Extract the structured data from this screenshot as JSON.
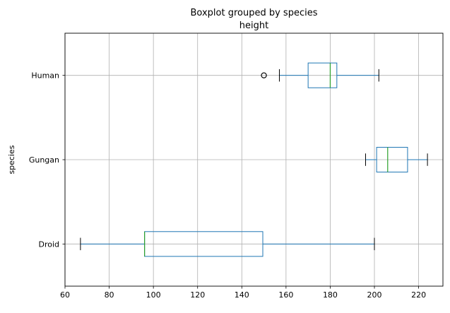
{
  "chart_data": {
    "type": "boxplot",
    "orientation": "horizontal",
    "title": "Boxplot grouped by species",
    "subtitle": "height",
    "xlabel": "",
    "ylabel": "species",
    "xlim": [
      60,
      231
    ],
    "xticks": [
      60,
      80,
      100,
      120,
      140,
      160,
      180,
      200,
      220
    ],
    "grid": true,
    "box_color": "#1f77b4",
    "median_color": "#2ca02c",
    "categories": [
      {
        "label": "Droid",
        "whisker_low": 67,
        "q1": 96,
        "median": 96,
        "q3": 149.5,
        "whisker_high": 200,
        "outliers": []
      },
      {
        "label": "Gungan",
        "whisker_low": 196,
        "q1": 201,
        "median": 206,
        "q3": 215,
        "whisker_high": 224,
        "outliers": []
      },
      {
        "label": "Human",
        "whisker_low": 157,
        "q1": 170,
        "median": 180,
        "q3": 183,
        "whisker_high": 202,
        "outliers": [
          150
        ]
      }
    ]
  }
}
